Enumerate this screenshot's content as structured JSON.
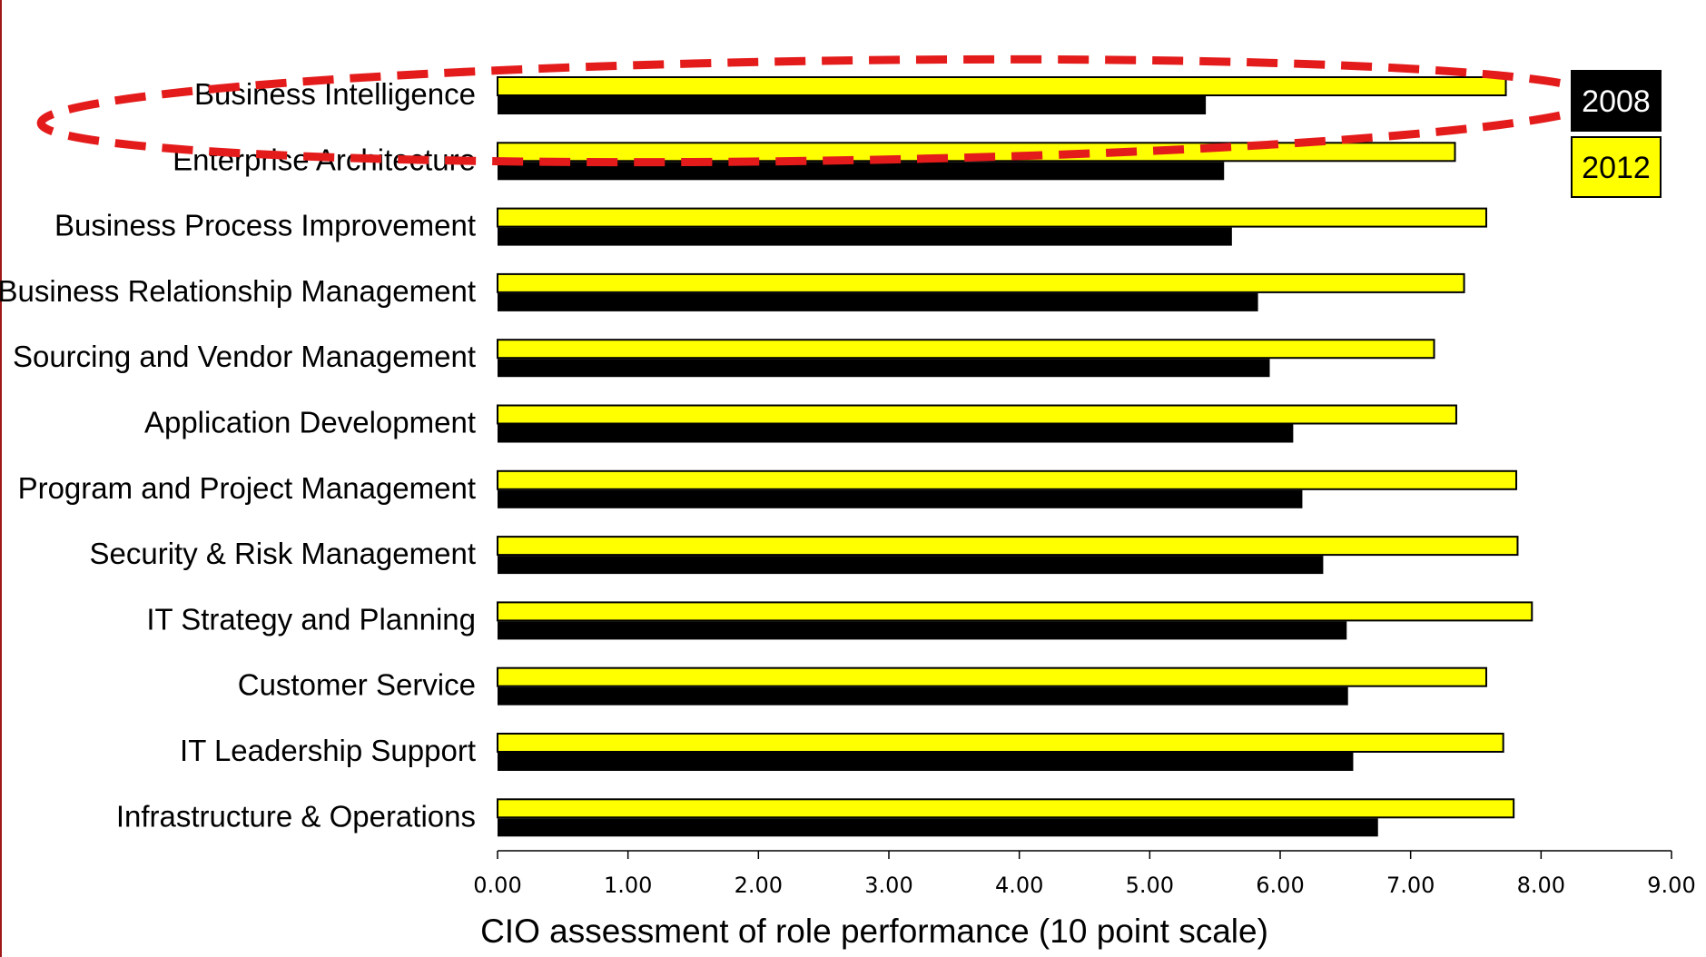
{
  "chart_data": {
    "type": "bar",
    "orientation": "horizontal",
    "xlabel": "CIO assessment of role performance (10 point scale)",
    "xlim": [
      0,
      9
    ],
    "xticks": [
      0,
      1,
      2,
      3,
      4,
      5,
      6,
      7,
      8,
      9
    ],
    "xtick_labels": [
      "0.00",
      "1.00",
      "2.00",
      "3.00",
      "4.00",
      "5.00",
      "6.00",
      "7.00",
      "8.00",
      "9.00"
    ],
    "grid": false,
    "legend_position": "top-right",
    "categories": [
      "Business Intelligence",
      "Enterprise Architecture",
      "Business Process Improvement",
      "Business Relationship Management",
      "Sourcing and Vendor Management",
      "Application Development",
      "Program and Project Management",
      "Security & Risk Management",
      "IT Strategy and Planning",
      "Customer Service",
      "IT Leadership Support",
      "Infrastructure & Operations"
    ],
    "series": [
      {
        "name": "2012",
        "color": "#ffff00",
        "values": [
          7.73,
          7.34,
          7.58,
          7.41,
          7.18,
          7.35,
          7.81,
          7.82,
          7.93,
          7.58,
          7.71,
          7.79
        ]
      },
      {
        "name": "2008",
        "color": "#000000",
        "values": [
          5.43,
          5.57,
          5.63,
          5.83,
          5.92,
          6.1,
          6.17,
          6.33,
          6.51,
          6.52,
          6.56,
          6.75
        ]
      }
    ],
    "highlight": {
      "category": "Business Intelligence",
      "style": "red dashed ellipse",
      "color": "#e41b1b"
    }
  }
}
